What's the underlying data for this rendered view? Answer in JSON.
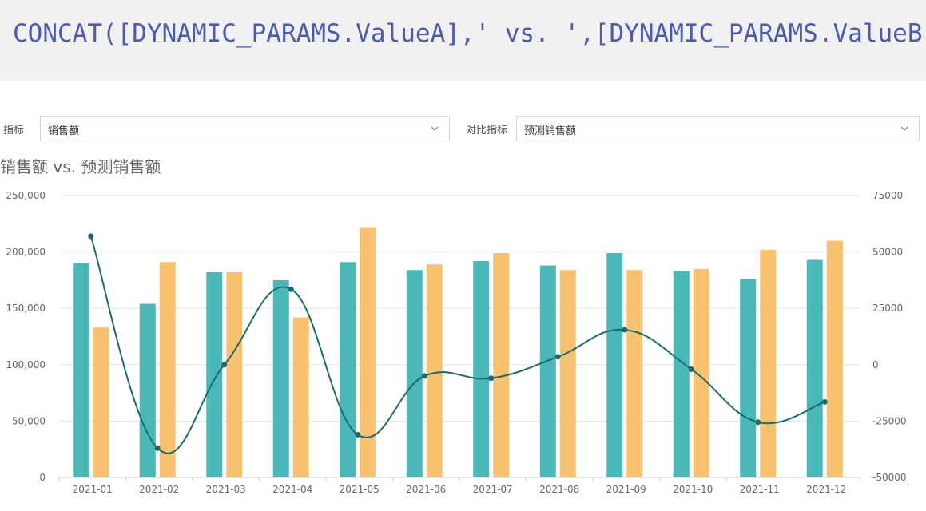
{
  "header": {
    "title": "CONCAT([DYNAMIC_PARAMS.ValueA],' vs. ',[DYNAMIC_PARAMS.ValueB])"
  },
  "filters": {
    "metric_label": "指标",
    "metric_value": "销售额",
    "compare_label": "对比指标",
    "compare_value": "预测销售额"
  },
  "colors": {
    "bar_a": "#4ab8b8",
    "bar_b": "#f8c271",
    "line": "#1c6b6b",
    "grid": "#e6e6e6"
  },
  "chart_data": {
    "type": "bar",
    "title": "销售额 vs. 预测销售额",
    "categories": [
      "2021-01",
      "2021-02",
      "2021-03",
      "2021-04",
      "2021-05",
      "2021-06",
      "2021-07",
      "2021-08",
      "2021-09",
      "2021-10",
      "2021-11",
      "2021-12"
    ],
    "series": [
      {
        "values": [
          190000,
          154000,
          182000,
          175000,
          191000,
          184000,
          192000,
          188000,
          199000,
          183000,
          176000,
          193000
        ]
      },
      {
        "values": [
          133000,
          191000,
          182000,
          142000,
          222000,
          189000,
          199000,
          184000,
          184000,
          185000,
          202000,
          210000
        ]
      },
      {
        "type": "line",
        "axis": "right",
        "values": [
          57000,
          -37000,
          0,
          33500,
          -31000,
          -5000,
          -6000,
          3500,
          15500,
          -2000,
          -25500,
          -16500
        ]
      }
    ],
    "y_left": {
      "min": 0,
      "max": 250000,
      "ticks": [
        "0",
        "50,000",
        "100,000",
        "150,000",
        "200,000",
        "250,000"
      ]
    },
    "y_right": {
      "min": -50000,
      "max": 75000,
      "ticks": [
        "-50000",
        "-25000",
        "0",
        "25000",
        "50000",
        "75000"
      ]
    },
    "grid": true,
    "legend": "none"
  }
}
